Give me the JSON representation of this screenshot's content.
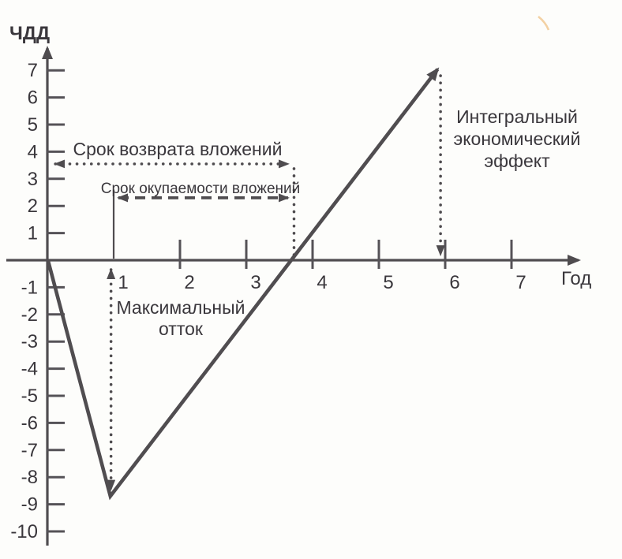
{
  "chart_data": {
    "type": "line",
    "title": "",
    "ylabel": "ЧДД",
    "xlabel": "Год",
    "x_ticks": [
      1,
      2,
      3,
      4,
      5,
      6,
      7
    ],
    "y_ticks": [
      7,
      6,
      5,
      4,
      3,
      2,
      1,
      -1,
      -2,
      -3,
      -4,
      -5,
      -6,
      -7,
      -8,
      -9,
      -10
    ],
    "xlim": [
      0,
      7.9
    ],
    "ylim": [
      -10.6,
      8.1
    ],
    "grid": false,
    "legend": "none",
    "series": [
      {
        "name": "ЧДД",
        "points": [
          [
            0,
            0
          ],
          [
            0.95,
            -8.7
          ],
          [
            5.88,
            7.1
          ]
        ],
        "end_arrow": true
      }
    ],
    "zero_crossing_x": 3.7,
    "annotations": [
      {
        "id": "payback-return",
        "label": "Срок возврата вложений",
        "line_style": "dotted",
        "orientation": "horizontal",
        "y": 3.55,
        "x_from": 0.05,
        "x_to": 3.63,
        "drop_x": 3.72,
        "arrows": "both"
      },
      {
        "id": "payback-operating",
        "label": "Срок окупаемости вложений",
        "line_style": "dashed",
        "orientation": "horizontal",
        "y": 2.3,
        "x_from": 1.0,
        "x_to": 3.63,
        "start_marker_height": 2.6,
        "arrows": "both"
      },
      {
        "id": "max-outflow",
        "label_lines": [
          "Максимальный",
          "отток"
        ],
        "line_style": "dotted",
        "orientation": "vertical",
        "x": 0.96,
        "y_from": -0.35,
        "y_to": -8.45,
        "arrows": "both"
      },
      {
        "id": "integral-effect",
        "label_lines": [
          "Интегральный",
          "экономический",
          "эффект"
        ],
        "line_style": "dotted",
        "orientation": "vertical",
        "x": 5.93,
        "y_from": 6.8,
        "y_to": 0.2,
        "arrows": "end"
      }
    ],
    "colors": {
      "ink": "#4f4c4f",
      "text": "#3a373c",
      "background": "#fdfdfb",
      "scan_artifact": "#e9a64b"
    }
  }
}
